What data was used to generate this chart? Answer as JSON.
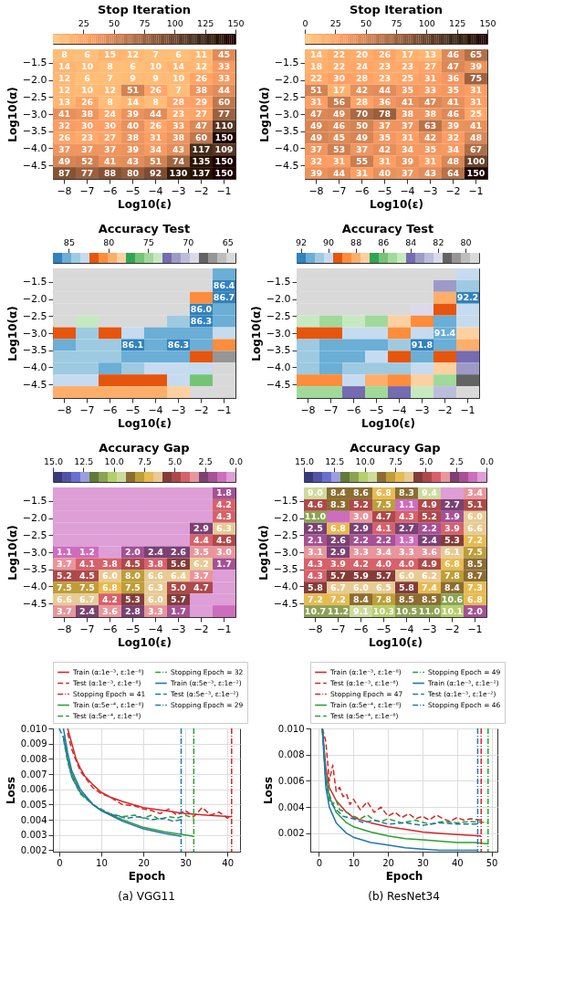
{
  "chart_data": [
    {
      "type": "heatmap",
      "title": "Stop Iteration",
      "xlabel": "Log10(ε)",
      "ylabel": "Log10(α)",
      "categories": [
        "−8",
        "−7",
        "−6",
        "−5",
        "−4",
        "−3",
        "−2",
        "−1"
      ],
      "ylim": [
        -4.9,
        -1.1
      ],
      "yticks": [
        -1.5,
        {
          "value": -2,
          "label": "−2.0"
        },
        -2.5,
        {
          "value": -3,
          "label": "−3.0"
        },
        -3.5,
        {
          "value": -4,
          "label": "−4.0"
        },
        -4.5
      ],
      "clim": [
        0,
        150
      ],
      "cticks": [
        25,
        50,
        75,
        100,
        125,
        150
      ],
      "colors": [
        "#ffc77f",
        "#ff9f65",
        "#bf774c",
        "#805033",
        "#402819",
        "#000000"
      ],
      "data_labels": true,
      "cells": [
        [
          8,
          6,
          15,
          12,
          7,
          6,
          11,
          45
        ],
        [
          14,
          10,
          8,
          6,
          10,
          14,
          12,
          33
        ],
        [
          12,
          6,
          7,
          9,
          9,
          10,
          26,
          33
        ],
        [
          12,
          10,
          12,
          51,
          26,
          7,
          38,
          44
        ],
        [
          13,
          26,
          8,
          14,
          8,
          28,
          29,
          60
        ],
        [
          41,
          38,
          24,
          39,
          44,
          23,
          27,
          77
        ],
        [
          32,
          30,
          30,
          40,
          26,
          33,
          47,
          110
        ],
        [
          26,
          23,
          27,
          38,
          31,
          38,
          60,
          150
        ],
        [
          37,
          37,
          37,
          39,
          34,
          43,
          117,
          109
        ],
        [
          49,
          52,
          41,
          43,
          51,
          74,
          135,
          150
        ],
        [
          87,
          77,
          88,
          80,
          92,
          130,
          137,
          150
        ]
      ]
    },
    {
      "type": "heatmap",
      "title": "Stop Iteration",
      "xlabel": "Log10(ε)",
      "ylabel": "Log10(α)",
      "categories": [
        "−8",
        "−7",
        "−6",
        "−5",
        "−4",
        "−3",
        "−2",
        "−1"
      ],
      "ylim": [
        -4.9,
        -1.1
      ],
      "yticks": [
        -1.5,
        {
          "value": -2,
          "label": "−2.0"
        },
        -2.5,
        {
          "value": -3,
          "label": "−3.0"
        },
        -3.5,
        {
          "value": -4,
          "label": "−4.0"
        },
        -4.5
      ],
      "clim": [
        0,
        150
      ],
      "cticks": [
        0,
        25,
        50,
        75,
        100,
        125,
        150
      ],
      "colors": [
        "#ffc77f",
        "#ff9f65",
        "#bf774c",
        "#805033",
        "#402819",
        "#000000"
      ],
      "data_labels": true,
      "cells": [
        [
          14,
          22,
          20,
          26,
          17,
          13,
          46,
          65
        ],
        [
          18,
          22,
          24,
          23,
          23,
          27,
          47,
          39
        ],
        [
          22,
          30,
          28,
          23,
          25,
          31,
          36,
          75
        ],
        [
          51,
          17,
          42,
          44,
          35,
          33,
          35,
          31
        ],
        [
          31,
          56,
          28,
          36,
          41,
          47,
          41,
          31
        ],
        [
          47,
          49,
          70,
          78,
          38,
          38,
          46,
          25
        ],
        [
          49,
          46,
          50,
          37,
          37,
          63,
          39,
          41
        ],
        [
          49,
          45,
          49,
          35,
          31,
          42,
          32,
          48
        ],
        [
          37,
          53,
          37,
          42,
          34,
          35,
          34,
          67
        ],
        [
          32,
          31,
          55,
          31,
          39,
          31,
          48,
          100
        ],
        [
          39,
          44,
          31,
          40,
          37,
          43,
          64,
          150
        ]
      ]
    },
    {
      "type": "heatmap",
      "title": "Accuracy Test",
      "xlabel": "Log10(ε)",
      "ylabel": "Log10(α)",
      "categories": [
        "−8",
        "−7",
        "−6",
        "−5",
        "−4",
        "−3",
        "−2",
        "−1"
      ],
      "ylim": [
        -4.9,
        -1.1
      ],
      "yticks": [
        -1.5,
        {
          "value": -2,
          "label": "−2.0"
        },
        -2.5,
        {
          "value": -3,
          "label": "−3.0"
        },
        -3.5,
        {
          "value": -4,
          "label": "−4.0"
        },
        -4.5
      ],
      "clim": [
        87,
        64
      ],
      "cticks": [
        85,
        80,
        75,
        70,
        65
      ],
      "colors": [
        "#3182bd",
        "#6baed6",
        "#9ecae1",
        "#c6dbef",
        "#e6550d",
        "#fd8d3c",
        "#fdae6b",
        "#fdd0a2",
        "#31a354",
        "#74c476",
        "#a1d99b",
        "#c7e9c0",
        "#756bb1",
        "#9e9ac8",
        "#bcbddc",
        "#dadaeb",
        "#636363",
        "#969696",
        "#bdbdbd",
        "#d9d9d9"
      ],
      "cells": [
        [
          64.6,
          64.6,
          64.6,
          64.6,
          64.6,
          64.6,
          64.6,
          85.3
        ],
        [
          64.6,
          64.6,
          64.6,
          64.6,
          64.6,
          64.6,
          64.6,
          86.4
        ],
        [
          64.6,
          64.6,
          64.6,
          64.6,
          64.6,
          64.6,
          80.7,
          86.7
        ],
        [
          64.6,
          64.6,
          64.6,
          64.6,
          64.6,
          64.6,
          86.0,
          85.3
        ],
        [
          64.6,
          73.8,
          64.6,
          64.6,
          64.6,
          84.1,
          86.3,
          85.3
        ],
        [
          81.8,
          84.1,
          81.8,
          83.0,
          85.3,
          85.3,
          85.3,
          83.0
        ],
        [
          85.3,
          84.1,
          84.1,
          86.1,
          85.3,
          86.3,
          85.3,
          80.7
        ],
        [
          84.1,
          84.1,
          84.1,
          85.3,
          85.3,
          85.3,
          81.8,
          66.9
        ],
        [
          84.1,
          84.1,
          85.3,
          84.1,
          83.0,
          83.0,
          83.0,
          64.6
        ],
        [
          83.0,
          83.0,
          81.8,
          81.8,
          81.8,
          83.0,
          76.1,
          64.6
        ],
        [
          79.5,
          79.5,
          79.5,
          79.5,
          79.5,
          78.4,
          64.6,
          64.6
        ]
      ],
      "cell_labels": [
        [
          null,
          null,
          null,
          null,
          null,
          null,
          null,
          null
        ],
        [
          null,
          null,
          null,
          null,
          null,
          null,
          null,
          "86.4"
        ],
        [
          null,
          null,
          null,
          null,
          null,
          null,
          null,
          "86.7"
        ],
        [
          null,
          null,
          null,
          null,
          null,
          null,
          "86.0",
          null
        ],
        [
          null,
          null,
          null,
          null,
          null,
          null,
          "86.3",
          null
        ],
        [
          null,
          null,
          null,
          null,
          null,
          null,
          null,
          null
        ],
        [
          null,
          null,
          null,
          "86.1",
          null,
          "86.3",
          null,
          null
        ],
        [
          null,
          null,
          null,
          null,
          null,
          null,
          null,
          null
        ],
        [
          null,
          null,
          null,
          null,
          null,
          null,
          null,
          null
        ],
        [
          null,
          null,
          null,
          null,
          null,
          null,
          null,
          null
        ],
        [
          null,
          null,
          null,
          null,
          null,
          null,
          null,
          null
        ]
      ]
    },
    {
      "type": "heatmap",
      "title": "Accuracy Test",
      "xlabel": "Log10(ε)",
      "ylabel": "Log10(α)",
      "categories": [
        "−8",
        "−7",
        "−6",
        "−5",
        "−4",
        "−3",
        "−2",
        "−1"
      ],
      "ylim": [
        -4.9,
        -1.1
      ],
      "yticks": [
        -1.5,
        {
          "value": -2,
          "label": "−2.0"
        },
        -2.5,
        {
          "value": -3,
          "label": "−3.0"
        },
        -3.5,
        {
          "value": -4,
          "label": "−4.0"
        },
        -4.5
      ],
      "clim": [
        92.3,
        79.0
      ],
      "cticks": [
        92,
        90,
        88,
        86,
        84,
        82,
        80
      ],
      "colors": [
        "#3182bd",
        "#6baed6",
        "#9ecae1",
        "#c6dbef",
        "#e6550d",
        "#fd8d3c",
        "#fdae6b",
        "#fdd0a2",
        "#31a354",
        "#74c476",
        "#a1d99b",
        "#c7e9c0",
        "#756bb1",
        "#9e9ac8",
        "#bcbddc",
        "#dadaeb",
        "#636363",
        "#969696",
        "#bdbdbd",
        "#d9d9d9"
      ],
      "cells": [
        [
          79.3,
          79.3,
          79.3,
          79.3,
          79.3,
          79.3,
          79.3,
          90.0
        ],
        [
          79.3,
          79.3,
          79.3,
          79.3,
          79.3,
          79.3,
          83.3,
          90.6
        ],
        [
          79.3,
          79.3,
          79.3,
          79.3,
          79.3,
          79.3,
          88.0,
          92.2
        ],
        [
          79.3,
          79.3,
          79.3,
          79.3,
          79.3,
          82.0,
          89.3,
          90.0
        ],
        [
          84.7,
          85.3,
          84.7,
          85.3,
          87.3,
          88.6,
          91.3,
          90.0
        ],
        [
          89.3,
          89.3,
          90.0,
          90.0,
          88.6,
          90.0,
          91.4,
          87.3
        ],
        [
          90.6,
          91.3,
          91.3,
          91.3,
          90.6,
          91.8,
          91.3,
          88.0
        ],
        [
          90.6,
          91.3,
          91.3,
          90.0,
          89.3,
          91.3,
          89.3,
          84.0
        ],
        [
          90.6,
          91.3,
          90.6,
          90.6,
          90.6,
          90.0,
          87.3,
          83.3
        ],
        [
          88.6,
          88.6,
          90.0,
          88.0,
          88.6,
          87.3,
          85.3,
          81.3
        ],
        [
          85.3,
          85.3,
          84.0,
          85.3,
          84.0,
          84.7,
          82.7,
          79.3
        ]
      ],
      "cell_labels": [
        [
          null,
          null,
          null,
          null,
          null,
          null,
          null,
          null
        ],
        [
          null,
          null,
          null,
          null,
          null,
          null,
          null,
          null
        ],
        [
          null,
          null,
          null,
          null,
          null,
          null,
          null,
          "92.2"
        ],
        [
          null,
          null,
          null,
          null,
          null,
          null,
          null,
          null
        ],
        [
          null,
          null,
          null,
          null,
          null,
          null,
          null,
          null
        ],
        [
          null,
          null,
          null,
          null,
          null,
          null,
          "91.4",
          null
        ],
        [
          null,
          null,
          null,
          null,
          null,
          "91.8",
          null,
          null
        ],
        [
          null,
          null,
          null,
          null,
          null,
          null,
          null,
          null
        ],
        [
          null,
          null,
          null,
          null,
          null,
          null,
          null,
          null
        ],
        [
          null,
          null,
          null,
          null,
          null,
          null,
          null,
          null
        ],
        [
          null,
          null,
          null,
          null,
          null,
          null,
          null,
          null
        ]
      ]
    },
    {
      "type": "heatmap",
      "title": "Accuracy Gap",
      "xlabel": "Log10(ε)",
      "ylabel": "Log10(α)",
      "categories": [
        "−8",
        "−7",
        "−6",
        "−5",
        "−4",
        "−3",
        "−2",
        "−1"
      ],
      "ylim": [
        -4.9,
        -1.1
      ],
      "yticks": [
        -1.5,
        {
          "value": -2,
          "label": "−2.0"
        },
        -2.5,
        {
          "value": -3,
          "label": "−3.0"
        },
        -3.5,
        {
          "value": -4,
          "label": "−4.0"
        },
        -4.5
      ],
      "clim": [
        15,
        0
      ],
      "cticks": [
        {
          "value": 15,
          "label": "15.0"
        },
        12.5,
        {
          "value": 10,
          "label": "10.0"
        },
        7.5,
        {
          "value": 5,
          "label": "5.0"
        },
        2.5,
        {
          "value": 0,
          "label": "0.0"
        }
      ],
      "colors": [
        "#393b79",
        "#5254a3",
        "#6b6ecf",
        "#9c9ede",
        "#637939",
        "#8ca252",
        "#b5cf6b",
        "#cedb9c",
        "#8c6d31",
        "#bd9e39",
        "#e7ba52",
        "#e7cb94",
        "#843c39",
        "#ad494a",
        "#d6616b",
        "#e7969c",
        "#7b4173",
        "#a55194",
        "#ce6dbd",
        "#de9ed6"
      ],
      "cells": [
        [
          0.4,
          0.4,
          0.4,
          0.4,
          0.4,
          0.4,
          0.4,
          1.8
        ],
        [
          0.4,
          0.4,
          0.4,
          0.4,
          0.4,
          0.4,
          0.4,
          4.2
        ],
        [
          0.4,
          0.4,
          0.4,
          0.4,
          0.4,
          0.4,
          0.4,
          4.3
        ],
        [
          0.4,
          0.4,
          0.4,
          0.4,
          0.4,
          0.4,
          2.9,
          6.3
        ],
        [
          0.4,
          0.4,
          0.4,
          0.4,
          0.4,
          0.4,
          4.4,
          4.6
        ],
        [
          1.1,
          1.2,
          0.4,
          2.0,
          2.4,
          2.6,
          3.5,
          3.0
        ],
        [
          3.7,
          4.1,
          3.8,
          4.5,
          3.8,
          5.6,
          6.2,
          1.7
        ],
        [
          5.2,
          4.5,
          6.0,
          8.0,
          6.6,
          6.4,
          3.7,
          0.4
        ],
        [
          7.5,
          7.5,
          6.8,
          7.5,
          6.3,
          5.0,
          4.7,
          0.4
        ],
        [
          6.6,
          6.7,
          4.2,
          5.3,
          6.0,
          5.7,
          0.4,
          0.4
        ],
        [
          3.7,
          2.4,
          3.6,
          2.8,
          3.3,
          1.7,
          0.4,
          1.1
        ]
      ],
      "cell_labels": [
        [
          null,
          null,
          null,
          null,
          null,
          null,
          null,
          "1.8"
        ],
        [
          null,
          null,
          null,
          null,
          null,
          null,
          null,
          "4.2"
        ],
        [
          null,
          null,
          null,
          null,
          null,
          null,
          null,
          "4.3"
        ],
        [
          null,
          null,
          null,
          null,
          null,
          null,
          "2.9",
          "6.3"
        ],
        [
          null,
          null,
          null,
          null,
          null,
          null,
          "4.4",
          "4.6"
        ],
        [
          "1.1",
          "1.2",
          null,
          "2.0",
          "2.4",
          "2.6",
          "3.5",
          "3.0"
        ],
        [
          "3.7",
          "4.1",
          "3.8",
          "4.5",
          "3.8",
          "5.6",
          "6.2",
          "1.7"
        ],
        [
          "5.2",
          "4.5",
          "6.0",
          "8.0",
          "6.6",
          "6.4",
          "3.7",
          null
        ],
        [
          "7.5",
          "7.5",
          "6.8",
          "7.5",
          "6.3",
          "5.0",
          "4.7",
          null
        ],
        [
          "6.6",
          "6.7",
          "4.2",
          "5.3",
          "6.0",
          "5.7",
          null,
          null
        ],
        [
          "3.7",
          "2.4",
          "3.6",
          "2.8",
          "3.3",
          "1.7",
          null,
          null
        ]
      ]
    },
    {
      "type": "heatmap",
      "title": "Accuracy Gap",
      "xlabel": "Log10(ε)",
      "ylabel": "Log10(α)",
      "categories": [
        "−8",
        "−7",
        "−6",
        "−5",
        "−4",
        "−3",
        "−2",
        "−1"
      ],
      "ylim": [
        -4.9,
        -1.1
      ],
      "yticks": [
        -1.5,
        {
          "value": -2,
          "label": "−2.0"
        },
        -2.5,
        {
          "value": -3,
          "label": "−3.0"
        },
        -3.5,
        {
          "value": -4,
          "label": "−4.0"
        },
        -4.5
      ],
      "clim": [
        15,
        0
      ],
      "cticks": [
        {
          "value": 15,
          "label": "15.0"
        },
        12.5,
        {
          "value": 10,
          "label": "10.0"
        },
        7.5,
        {
          "value": 5,
          "label": "5.0"
        },
        2.5,
        {
          "value": 0,
          "label": "0.0"
        }
      ],
      "colors": [
        "#393b79",
        "#5254a3",
        "#6b6ecf",
        "#9c9ede",
        "#637939",
        "#8ca252",
        "#b5cf6b",
        "#cedb9c",
        "#8c6d31",
        "#bd9e39",
        "#e7ba52",
        "#e7cb94",
        "#843c39",
        "#ad494a",
        "#d6616b",
        "#e7969c",
        "#7b4173",
        "#a55194",
        "#ce6dbd",
        "#de9ed6"
      ],
      "cells": [
        [
          9.0,
          8.4,
          8.6,
          6.8,
          8.3,
          9.4,
          0.4,
          3.4
        ],
        [
          4.6,
          8.3,
          5.2,
          7.5,
          1.1,
          4.9,
          2.7,
          5.1
        ],
        [
          11.0,
          1.1,
          3.0,
          4.7,
          4.3,
          5.2,
          1.9,
          6.0
        ],
        [
          2.5,
          6.8,
          2.9,
          4.1,
          2.7,
          2.2,
          3.9,
          6.6
        ],
        [
          2.1,
          2.6,
          2.2,
          2.2,
          1.3,
          2.4,
          5.3,
          7.2
        ],
        [
          3.1,
          2.9,
          3.3,
          3.4,
          3.3,
          3.6,
          6.1,
          7.5
        ],
        [
          4.3,
          3.9,
          4.2,
          4.0,
          4.0,
          4.9,
          6.8,
          8.5
        ],
        [
          4.3,
          5.7,
          5.9,
          5.7,
          6.0,
          6.2,
          7.8,
          8.7
        ],
        [
          5.8,
          6.7,
          6.0,
          6.5,
          5.8,
          7.4,
          8.4,
          7.3
        ],
        [
          7.2,
          7.2,
          8.4,
          7.8,
          8.5,
          8.5,
          10.6,
          6.8
        ],
        [
          10.7,
          11.2,
          9.1,
          10.3,
          10.5,
          11.0,
          10.1,
          2.0
        ]
      ],
      "cell_labels": [
        [
          "9.0",
          "8.4",
          "8.6",
          "6.8",
          "8.3",
          "9.4",
          null,
          "3.4"
        ],
        [
          "4.6",
          "8.3",
          "5.2",
          "7.5",
          "1.1",
          "4.9",
          "2.7",
          "5.1"
        ],
        [
          "11.0",
          null,
          "3.0",
          "4.7",
          "4.3",
          "5.2",
          "1.9",
          "6.0"
        ],
        [
          "2.5",
          "6.8",
          "2.9",
          "4.1",
          "2.7",
          "2.2",
          "3.9",
          "6.6"
        ],
        [
          "2.1",
          "2.6",
          "2.2",
          "2.2",
          "1.3",
          "2.4",
          "5.3",
          "7.2"
        ],
        [
          "3.1",
          "2.9",
          "3.3",
          "3.4",
          "3.3",
          "3.6",
          "6.1",
          "7.5"
        ],
        [
          "4.3",
          "3.9",
          "4.2",
          "4.0",
          "4.0",
          "4.9",
          "6.8",
          "8.5"
        ],
        [
          "4.3",
          "5.7",
          "5.9",
          "5.7",
          "6.0",
          "6.2",
          "7.8",
          "8.7"
        ],
        [
          "5.8",
          "6.7",
          "6.0",
          "6.5",
          "5.8",
          "7.4",
          "8.4",
          "7.3"
        ],
        [
          "7.2",
          "7.2",
          "8.4",
          "7.8",
          "8.5",
          "8.5",
          "10.6",
          "6.8"
        ],
        [
          "10.7",
          "11.2",
          "9.1",
          "10.3",
          "10.5",
          "11.0",
          "10.1",
          "2.0"
        ]
      ]
    },
    {
      "type": "line",
      "xlabel": "Epoch",
      "ylabel": "Loss",
      "legend": "top",
      "grid": true,
      "xlim": [
        -1.5,
        43
      ],
      "xticks": [
        0,
        10,
        20,
        30,
        40
      ],
      "ylim": [
        0.0019,
        0.01
      ],
      "yticks": [
        {
          "value": 0.002,
          "label": "0.002"
        },
        {
          "value": 0.003,
          "label": "0.003"
        },
        {
          "value": 0.004,
          "label": "0.004"
        },
        {
          "value": 0.005,
          "label": "0.005"
        },
        {
          "value": 0.006,
          "label": "0.006"
        },
        {
          "value": 0.007,
          "label": "0.007"
        },
        {
          "value": 0.008,
          "label": "0.008"
        },
        {
          "value": 0.009,
          "label": "0.009"
        },
        {
          "value": 0.01,
          "label": "0.010"
        }
      ],
      "series": [
        {
          "name": "Train (α:1e⁻³, ε:1e⁻⁸)",
          "color": "#d62728",
          "line_style": "solid",
          "x": [
            2,
            3,
            4,
            5,
            6,
            8,
            10,
            12,
            15,
            20,
            25,
            30,
            35,
            41
          ],
          "values": [
            0.01,
            0.009,
            0.008,
            0.0074,
            0.0069,
            0.0063,
            0.0058,
            0.0055,
            0.0052,
            0.0048,
            0.0046,
            0.0044,
            0.0043,
            0.0042
          ]
        },
        {
          "name": "Test (α:1e⁻³, ε:1e⁻⁸)",
          "color": "#d62728",
          "line_style": "dashed",
          "x": [
            2,
            3,
            5,
            8,
            10,
            12,
            15,
            18,
            20,
            22,
            24,
            26,
            28,
            30,
            32,
            34,
            36,
            38,
            40,
            41
          ],
          "values": [
            0.0097,
            0.0086,
            0.0072,
            0.0061,
            0.0057,
            0.0055,
            0.005,
            0.0049,
            0.0047,
            0.0046,
            0.0044,
            0.0047,
            0.0043,
            0.0046,
            0.0042,
            0.0048,
            0.0043,
            0.0045,
            0.0041,
            0.0043
          ]
        },
        {
          "name": "Train (α:5e⁻⁴, ε:1e⁻⁸)",
          "color": "#2ca02c",
          "line_style": "solid",
          "x": [
            1,
            2,
            3,
            5,
            8,
            10,
            15,
            20,
            25,
            30,
            32
          ],
          "values": [
            0.0095,
            0.008,
            0.007,
            0.0058,
            0.005,
            0.0046,
            0.004,
            0.0035,
            0.0032,
            0.003,
            0.0029
          ]
        },
        {
          "name": "Test (α:5e⁻⁴, ε:1e⁻⁸)",
          "color": "#2ca02c",
          "line_style": "dashed",
          "x": [
            1,
            2,
            3,
            5,
            8,
            10,
            12,
            15,
            18,
            20,
            22,
            24,
            26,
            28,
            30,
            32
          ],
          "values": [
            0.0093,
            0.0078,
            0.0068,
            0.0057,
            0.005,
            0.0047,
            0.0044,
            0.0042,
            0.0043,
            0.0041,
            0.0043,
            0.004,
            0.0042,
            0.0041,
            0.0043,
            0.0041
          ]
        },
        {
          "name": "Train (α:5e⁻³, ε:1e⁻²)",
          "color": "#1f77b4",
          "line_style": "solid",
          "x": [
            1,
            2,
            3,
            5,
            8,
            10,
            15,
            20,
            25,
            29
          ],
          "values": [
            0.01,
            0.0084,
            0.0072,
            0.006,
            0.005,
            0.0046,
            0.0039,
            0.0034,
            0.0031,
            0.0029
          ]
        },
        {
          "name": "Test (α:5e⁻³, ε:1e⁻²)",
          "color": "#1f77b4",
          "line_style": "dashed",
          "x": [
            0,
            1,
            2,
            3,
            5,
            8,
            10,
            13,
            16,
            19,
            22,
            25,
            27,
            29
          ],
          "values": [
            0.01,
            0.0094,
            0.008,
            0.0068,
            0.0058,
            0.005,
            0.0046,
            0.0043,
            0.0041,
            0.0042,
            0.004,
            0.0041,
            0.0039,
            0.004
          ]
        }
      ],
      "ref_lines": [
        {
          "axis": "x",
          "value": 41,
          "label": "Stopping Epoch = 41",
          "color": "#d62728",
          "line_style": "dashdot"
        },
        {
          "axis": "x",
          "value": 32,
          "label": "Stopping Epoch = 32",
          "color": "#2ca02c",
          "line_style": "dashdot"
        },
        {
          "axis": "x",
          "value": 29,
          "label": "Stopping Epoch = 29",
          "color": "#1f77b4",
          "line_style": "dashdot"
        }
      ],
      "annotations": [
        "(a) VGG11"
      ]
    },
    {
      "type": "line",
      "xlabel": "Epoch",
      "ylabel": "Loss",
      "legend": "top",
      "grid": true,
      "xlim": [
        -2.5,
        51.7
      ],
      "xticks": [
        0,
        10,
        20,
        30,
        40,
        50
      ],
      "ylim": [
        0.0006,
        0.01
      ],
      "yticks": [
        {
          "value": 0.002,
          "label": "0.002"
        },
        {
          "value": 0.004,
          "label": "0.004"
        },
        {
          "value": 0.006,
          "label": "0.006"
        },
        {
          "value": 0.008,
          "label": "0.008"
        },
        {
          "value": 0.01,
          "label": "0.010"
        }
      ],
      "series": [
        {
          "name": "Train (α:1e⁻³, ε:1e⁻⁸)",
          "color": "#d62728",
          "line_style": "solid",
          "x": [
            1,
            2,
            3,
            5,
            8,
            10,
            15,
            20,
            25,
            30,
            35,
            40,
            47
          ],
          "values": [
            0.01,
            0.007,
            0.0055,
            0.0045,
            0.0036,
            0.0032,
            0.0028,
            0.0025,
            0.0023,
            0.0021,
            0.002,
            0.0019,
            0.0018
          ]
        },
        {
          "name": "Test (α:1e⁻³, ε:1e⁻⁸)",
          "color": "#d62728",
          "line_style": "dashed",
          "x": [
            1,
            2,
            3,
            4,
            5,
            6,
            7,
            8,
            9,
            10,
            12,
            14,
            16,
            18,
            20,
            22,
            24,
            26,
            28,
            30,
            32,
            34,
            36,
            38,
            40,
            42,
            44,
            47
          ],
          "values": [
            0.01,
            0.009,
            0.006,
            0.0072,
            0.0052,
            0.0055,
            0.0048,
            0.005,
            0.0042,
            0.0046,
            0.0038,
            0.0044,
            0.0036,
            0.004,
            0.0033,
            0.0036,
            0.0032,
            0.0035,
            0.0031,
            0.0033,
            0.003,
            0.0034,
            0.0031,
            0.0029,
            0.0032,
            0.003,
            0.0031,
            0.003
          ]
        },
        {
          "name": "Train (α:5e⁻⁴, ε:1e⁻⁸)",
          "color": "#2ca02c",
          "line_style": "solid",
          "x": [
            1,
            2,
            3,
            5,
            8,
            10,
            15,
            20,
            25,
            30,
            35,
            40,
            45,
            49
          ],
          "values": [
            0.01,
            0.0062,
            0.0048,
            0.0036,
            0.0028,
            0.0025,
            0.0021,
            0.0018,
            0.0016,
            0.0015,
            0.0014,
            0.0013,
            0.0013,
            0.0012
          ]
        },
        {
          "name": "Test (α:5e⁻⁴, ε:1e⁻⁸)",
          "color": "#2ca02c",
          "line_style": "dashed",
          "x": [
            1,
            2,
            3,
            4,
            5,
            6,
            8,
            10,
            12,
            14,
            16,
            18,
            20,
            24,
            28,
            32,
            36,
            40,
            44,
            49
          ],
          "values": [
            0.01,
            0.0065,
            0.005,
            0.0042,
            0.0045,
            0.0038,
            0.0036,
            0.0033,
            0.0031,
            0.0034,
            0.003,
            0.0029,
            0.0031,
            0.0028,
            0.003,
            0.0027,
            0.0029,
            0.0028,
            0.0029,
            0.0028
          ]
        },
        {
          "name": "Train (α:1e⁻³, ε:1e⁻²)",
          "color": "#1f77b4",
          "line_style": "solid",
          "x": [
            1,
            2,
            3,
            5,
            8,
            10,
            15,
            20,
            25,
            30,
            35,
            40,
            46
          ],
          "values": [
            0.01,
            0.0055,
            0.004,
            0.0028,
            0.002,
            0.0017,
            0.0013,
            0.0011,
            0.0009,
            0.0008,
            0.0007,
            0.0007,
            0.0007
          ]
        },
        {
          "name": "Test (α:1e⁻³, ε:1e⁻²)",
          "color": "#1f77b4",
          "line_style": "dashed",
          "x": [
            1,
            2,
            3,
            5,
            7,
            10,
            13,
            16,
            20,
            25,
            30,
            35,
            40,
            46
          ],
          "values": [
            0.0098,
            0.006,
            0.0045,
            0.0038,
            0.0033,
            0.0031,
            0.0028,
            0.003,
            0.0027,
            0.0028,
            0.0026,
            0.0028,
            0.0027,
            0.0027
          ]
        }
      ],
      "ref_lines": [
        {
          "axis": "x",
          "value": 47,
          "label": "Stopping Epoch = 47",
          "color": "#d62728",
          "line_style": "dashdot"
        },
        {
          "axis": "x",
          "value": 49,
          "label": "Stopping Epoch = 49",
          "color": "#2ca02c",
          "line_style": "dashdot"
        },
        {
          "axis": "x",
          "value": 46,
          "label": "Stopping Epoch = 46",
          "color": "#1f77b4",
          "line_style": "dashdot"
        }
      ],
      "annotations": [
        "(b) ResNet34"
      ]
    }
  ]
}
